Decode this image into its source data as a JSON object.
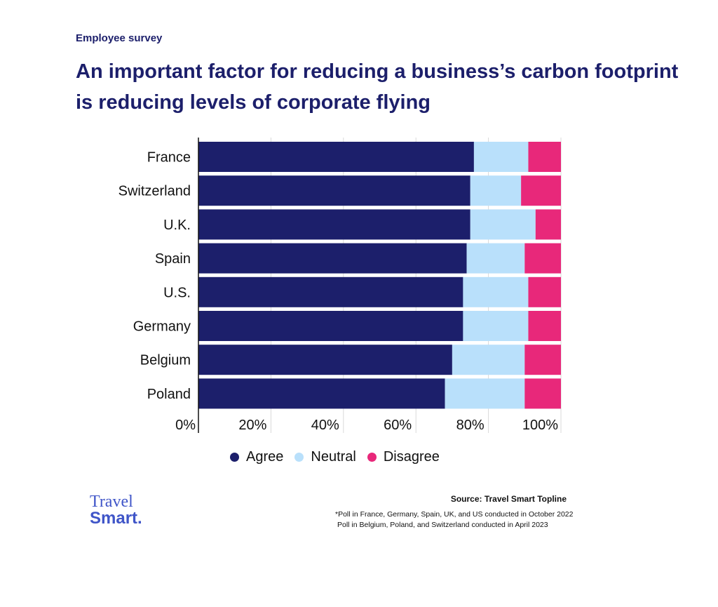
{
  "kicker": "Employee survey",
  "title": "An important factor for reducing a business’s carbon footprint is reducing levels of corporate flying",
  "chart_data": {
    "type": "bar",
    "orientation": "horizontal",
    "stacked": true,
    "categories": [
      "France",
      "Switzerland",
      "U.K.",
      "Spain",
      "U.S.",
      "Germany",
      "Belgium",
      "Poland"
    ],
    "series": [
      {
        "name": "Agree",
        "color": "#1c1f6b",
        "values": [
          76,
          75,
          75,
          74,
          73,
          73,
          70,
          68
        ]
      },
      {
        "name": "Neutral",
        "color": "#b9e0fb",
        "values": [
          15,
          14,
          18,
          16,
          18,
          18,
          20,
          22
        ]
      },
      {
        "name": "Disagree",
        "color": "#e8287a",
        "values": [
          9,
          11,
          7,
          10,
          9,
          9,
          10,
          10
        ]
      }
    ],
    "xlim": [
      0,
      100
    ],
    "xticks": [
      "0%",
      "20%",
      "40%",
      "60%",
      "80%",
      "100%"
    ],
    "grid": true,
    "legend_position": "bottom"
  },
  "legend": [
    {
      "label": "Agree",
      "color": "#1c1f6b"
    },
    {
      "label": "Neutral",
      "color": "#b9e0fb"
    },
    {
      "label": "Disagree",
      "color": "#e8287a"
    }
  ],
  "logo": {
    "line1": "Travel",
    "line2": "Smart."
  },
  "source": "Source: Travel Smart Topline",
  "notes": [
    "*Poll in France, Germany, Spain, UK, and US conducted in October 2022",
    "Poll in Belgium, Poland, and Switzerland conducted  in April 2023"
  ]
}
